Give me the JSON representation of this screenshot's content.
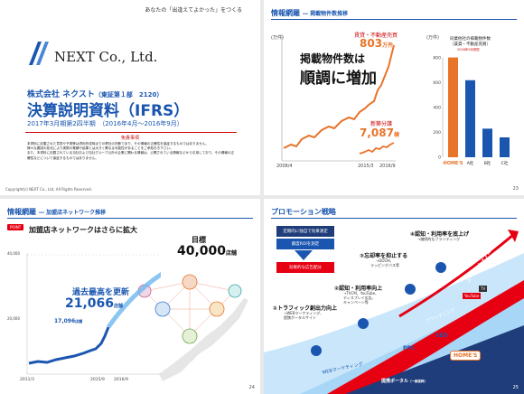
{
  "slide1": {
    "tagline": "あなたの「出逢えてよかった」をつくる",
    "logo_text": "NEXT Co., Ltd.",
    "company": "株式会社 ネクスト",
    "listing": "（東証第１部　2120）",
    "title": "決算説明資料（IFRS）",
    "period": "2017年3月期第2四半期　（2016年4月〜2016年9月）",
    "disclaimer_title": "免責事項",
    "disclaimer_lines": [
      "本資料に記載された意見や予測等は資料作成時点での弊社の判断であり、その情報の正確性を保証するものではありません。",
      "様々な要因の変化により実際の業績や結果とは大きく異なる可能性があることをご承知おき下さい。",
      "また、本資料に記載されている当社および当社グループ以外の企業に関わる情報は、公開されている情報などから引用しており、その情報の正確性などについて保証するものではありません。"
    ],
    "copyright": "Copyright(c) NEXT Co., Ltd. All Rights Reserved."
  },
  "slide2": {
    "header": "情報網羅",
    "header_sub": "― 掲載物件数推移",
    "y_unit": "(万件)",
    "headline_1": "掲載物件数は",
    "headline_2": "順調に増加",
    "label_top_1": "賃貸・不動産売買",
    "label_top_2": "803",
    "label_top_unit": "万件",
    "label_bottom_1": "新築分譲",
    "label_bottom_2": "7,087",
    "label_bottom_unit": "棟",
    "x_ticks": [
      "2008/4",
      "2015/3",
      "2016/9"
    ],
    "bar_unit": "(万件)",
    "bar_title_1": "同業他社の掲載物件数",
    "bar_title_2": "（賃貸・不動産売買）",
    "bar_note": "2016年9月現在",
    "page": "23"
  },
  "chart_data": [
    {
      "type": "line",
      "title": "",
      "ylabel": "(万件)",
      "x": [
        "2008/4",
        "2015/3",
        "2016/9"
      ],
      "series": [
        {
          "name": "賃貸・不動産売買",
          "end_value": 803,
          "unit": "万件"
        },
        {
          "name": "新築分譲",
          "end_value": 7087,
          "unit": "棟"
        }
      ]
    },
    {
      "type": "bar",
      "title": "同業他社の掲載物件数（賃貸・不動産売買）",
      "ylabel": "(万件)",
      "y_ticks": [
        "800",
        "600",
        "400",
        "200",
        "0"
      ],
      "ylim": [
        0,
        800
      ],
      "categories": [
        "HOME'S",
        "A社",
        "B社",
        "C社"
      ],
      "values": [
        803,
        620,
        230,
        160
      ]
    },
    {
      "type": "line",
      "title": "",
      "ylabel": "",
      "y_ticks": [
        "40,000",
        "20,000"
      ],
      "x": [
        "2011/3",
        "2015/9",
        "2016/9"
      ],
      "series": [
        {
          "name": "",
          "points": [
            {
              "x": "2015/9",
              "value": 17096
            },
            {
              "x": "2016/9",
              "value": 21066
            }
          ]
        }
      ]
    }
  ],
  "slide3": {
    "header": "情報網羅",
    "header_sub": "― 加盟店ネットワーク推移",
    "badge": "POINT",
    "subtitle": "加盟店ネットワークはさらに拡大",
    "target_label": "目標",
    "target_value": "40,000",
    "target_unit": "店舗",
    "record_label": "過去最高を更新",
    "record_value": "21,066",
    "record_unit": "店舗",
    "prev_value": "17,096",
    "prev_unit": "店舗",
    "y_ticks": [
      "40,000",
      "20,000"
    ],
    "x_ticks": [
      "2011/3",
      "2015/9",
      "2016/9"
    ],
    "page": "24"
  },
  "slide4": {
    "header": "プロモーション戦略",
    "box1": "定期的に独自で効果測定",
    "box2": "都度ROIを測定",
    "box3": "効果的な広告配分",
    "step1_title": "①トラフィック創出力向上",
    "step1_desc_1": "→WEBマーケティング、",
    "step1_desc_2": "提携ポータルサイト",
    "step2_title": "②認知・利用率向上",
    "step2_desc_1": "→TVCM、YouTube、",
    "step2_desc_2": "ディスプレイ広告、",
    "step2_desc_3": "キャンペーン等",
    "step3_title": "③忘却率を抑止する",
    "step3_desc_1": "→DOOH、",
    "step3_desc_2": "ラッピングバス等",
    "step4_title": "④認知・利用率を底上げ",
    "step4_desc": "→継続的なブランディング",
    "arrow_label": "ユーザーシェアNo.1へ",
    "band_1": "WEBマーケティング",
    "band_2": "PPC",
    "band_3": "SEO",
    "band_4": "ブランディング",
    "band_5": "提携ポータル",
    "band_5_sub": "（一部抜粋）",
    "logo": "HOME'S",
    "tag_tv": "TV",
    "tag_youtube": "YouTube",
    "page": "25"
  },
  "colors": {
    "brand_blue": "#1a56b0",
    "orange": "#e8742a",
    "red": "#e60012",
    "navy": "#1f3d7a"
  }
}
